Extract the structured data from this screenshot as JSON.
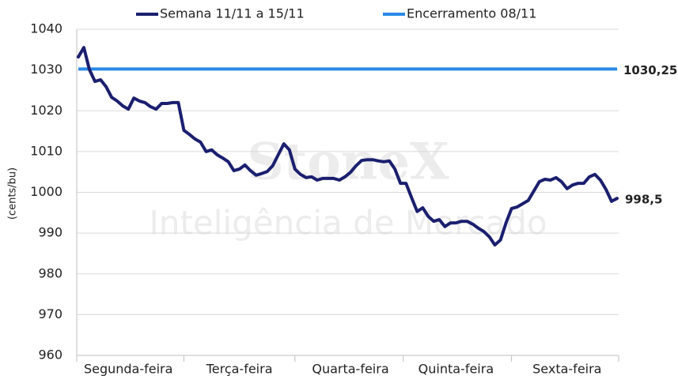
{
  "chart_data": {
    "type": "line",
    "watermark": {
      "brand": "StoneX",
      "tagline": "Inteligência de Mercado"
    },
    "y_label": "(cents/bu)",
    "ylim": [
      960,
      1040
    ],
    "yticks": [
      960,
      970,
      980,
      990,
      1000,
      1010,
      1020,
      1030,
      1040
    ],
    "grid": true,
    "categories": [
      null,
      null,
      null,
      null,
      null,
      null,
      null,
      null,
      null,
      "Segunda-feira",
      null,
      null,
      null,
      null,
      null,
      null,
      null,
      null,
      null,
      null,
      null,
      null,
      null,
      null,
      null,
      null,
      null,
      null,
      null,
      "Terça-feira",
      null,
      null,
      null,
      null,
      null,
      null,
      null,
      null,
      null,
      null,
      null,
      null,
      null,
      null,
      null,
      null,
      null,
      null,
      null,
      "Quarta-feira",
      null,
      null,
      null,
      null,
      null,
      null,
      null,
      null,
      null,
      null,
      null,
      null,
      null,
      null,
      null,
      null,
      null,
      null,
      "Quinta-feira",
      null,
      null,
      null,
      null,
      null,
      null,
      null,
      null,
      null,
      null,
      null,
      null,
      null,
      null,
      null,
      null,
      null,
      null,
      null,
      "Sexta-feira",
      null,
      null,
      null,
      null,
      null,
      null,
      null,
      null,
      null
    ],
    "series": [
      {
        "name": "Semana 11/11 a 15/11",
        "color": "#1b1f6f",
        "last_label": "998,5",
        "values": [
          1033.2,
          1035.5,
          1030.1,
          1027.2,
          1027.6,
          1025.9,
          1023.3,
          1022.4,
          1021.2,
          1020.4,
          1023.1,
          1022.4,
          1022.0,
          1021.0,
          1020.4,
          1021.8,
          1021.8,
          1022.0,
          1022.0,
          1015.2,
          1014.2,
          1013.1,
          1012.3,
          1010.0,
          1010.4,
          1009.2,
          1008.4,
          1007.5,
          1005.3,
          1005.7,
          1006.7,
          1005.3,
          1004.2,
          1004.6,
          1005.1,
          1006.5,
          1009.2,
          1011.9,
          1010.4,
          1005.7,
          1004.4,
          1003.6,
          1003.8,
          1003.0,
          1003.4,
          1003.4,
          1003.4,
          1003.0,
          1003.8,
          1004.9,
          1006.5,
          1007.8,
          1008.0,
          1008.0,
          1007.7,
          1007.5,
          1007.7,
          1005.7,
          1002.2,
          1002.2,
          998.7,
          995.3,
          996.2,
          994.1,
          992.9,
          993.3,
          991.6,
          992.5,
          992.5,
          992.9,
          992.9,
          992.2,
          991.2,
          990.4,
          989.1,
          987.1,
          988.3,
          992.5,
          996.0,
          996.4,
          997.2,
          998.0,
          1000.3,
          1002.6,
          1003.2,
          1003.0,
          1003.6,
          1002.6,
          1000.9,
          1001.8,
          1002.2,
          1002.2,
          1003.8,
          1004.4,
          1003.0,
          1000.7,
          997.8,
          998.5
        ]
      }
    ],
    "reference": {
      "name": "Encerramento 08/11",
      "color": "#2a8ae6",
      "value": 1030.25,
      "label": "1030,25"
    }
  }
}
